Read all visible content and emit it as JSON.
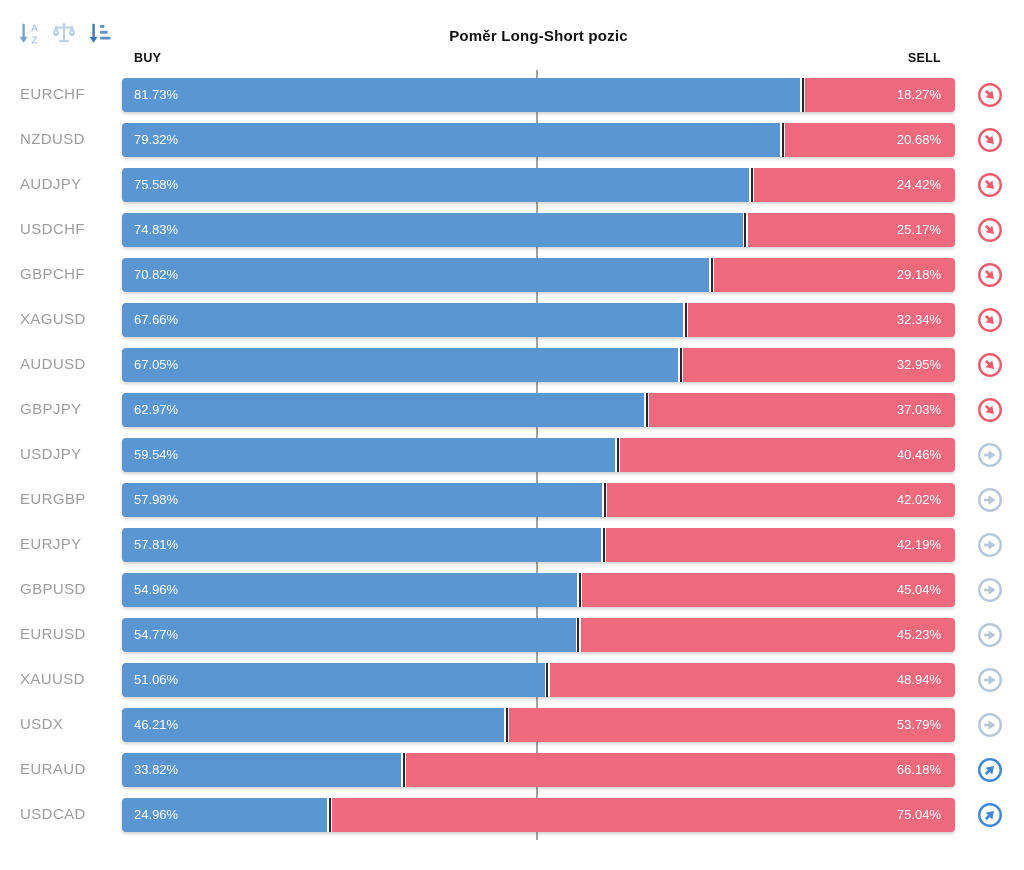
{
  "header": {
    "title": "Poměr Long-Short pozic",
    "buy_label": "BUY",
    "sell_label": "SELL"
  },
  "toolbar": {
    "icons": [
      {
        "name": "sort-alphabetical-icon"
      },
      {
        "name": "balance-compare-icon"
      },
      {
        "name": "sort-amount-icon"
      }
    ]
  },
  "chart_data": {
    "type": "bar",
    "orientation": "horizontal-stacked",
    "title": "Poměr Long-Short pozic",
    "series": [
      "BUY",
      "SELL"
    ],
    "unit": "%",
    "xlim": [
      0,
      100
    ],
    "midline": 50,
    "legend_position": "top",
    "colors": {
      "buy": "#5996d2",
      "sell": "#ef6a7d",
      "divider": "#35232c",
      "midline": "#a3a3a3",
      "trend_down": "#ee5a6d",
      "trend_neutral": "#b7c7da",
      "trend_up": "#3e86d8"
    },
    "rows": [
      {
        "symbol": "EURCHF",
        "buy": 81.73,
        "sell": 18.27,
        "buy_label": "81.73%",
        "sell_label": "18.27%",
        "trend": "down"
      },
      {
        "symbol": "NZDUSD",
        "buy": 79.32,
        "sell": 20.68,
        "buy_label": "79.32%",
        "sell_label": "20.68%",
        "trend": "down"
      },
      {
        "symbol": "AUDJPY",
        "buy": 75.58,
        "sell": 24.42,
        "buy_label": "75.58%",
        "sell_label": "24.42%",
        "trend": "down"
      },
      {
        "symbol": "USDCHF",
        "buy": 74.83,
        "sell": 25.17,
        "buy_label": "74.83%",
        "sell_label": "25.17%",
        "trend": "down"
      },
      {
        "symbol": "GBPCHF",
        "buy": 70.82,
        "sell": 29.18,
        "buy_label": "70.82%",
        "sell_label": "29.18%",
        "trend": "down"
      },
      {
        "symbol": "XAGUSD",
        "buy": 67.66,
        "sell": 32.34,
        "buy_label": "67.66%",
        "sell_label": "32.34%",
        "trend": "down"
      },
      {
        "symbol": "AUDUSD",
        "buy": 67.05,
        "sell": 32.95,
        "buy_label": "67.05%",
        "sell_label": "32.95%",
        "trend": "down"
      },
      {
        "symbol": "GBPJPY",
        "buy": 62.97,
        "sell": 37.03,
        "buy_label": "62.97%",
        "sell_label": "37.03%",
        "trend": "down"
      },
      {
        "symbol": "USDJPY",
        "buy": 59.54,
        "sell": 40.46,
        "buy_label": "59.54%",
        "sell_label": "40.46%",
        "trend": "neutral"
      },
      {
        "symbol": "EURGBP",
        "buy": 57.98,
        "sell": 42.02,
        "buy_label": "57.98%",
        "sell_label": "42.02%",
        "trend": "neutral"
      },
      {
        "symbol": "EURJPY",
        "buy": 57.81,
        "sell": 42.19,
        "buy_label": "57.81%",
        "sell_label": "42.19%",
        "trend": "neutral"
      },
      {
        "symbol": "GBPUSD",
        "buy": 54.96,
        "sell": 45.04,
        "buy_label": "54.96%",
        "sell_label": "45.04%",
        "trend": "neutral"
      },
      {
        "symbol": "EURUSD",
        "buy": 54.77,
        "sell": 45.23,
        "buy_label": "54.77%",
        "sell_label": "45.23%",
        "trend": "neutral"
      },
      {
        "symbol": "XAUUSD",
        "buy": 51.06,
        "sell": 48.94,
        "buy_label": "51.06%",
        "sell_label": "48.94%",
        "trend": "neutral"
      },
      {
        "symbol": "USDX",
        "buy": 46.21,
        "sell": 53.79,
        "buy_label": "46.21%",
        "sell_label": "53.79%",
        "trend": "neutral"
      },
      {
        "symbol": "EURAUD",
        "buy": 33.82,
        "sell": 66.18,
        "buy_label": "33.82%",
        "sell_label": "66.18%",
        "trend": "up"
      },
      {
        "symbol": "USDCAD",
        "buy": 24.96,
        "sell": 75.04,
        "buy_label": "24.96%",
        "sell_label": "75.04%",
        "trend": "up"
      }
    ]
  }
}
